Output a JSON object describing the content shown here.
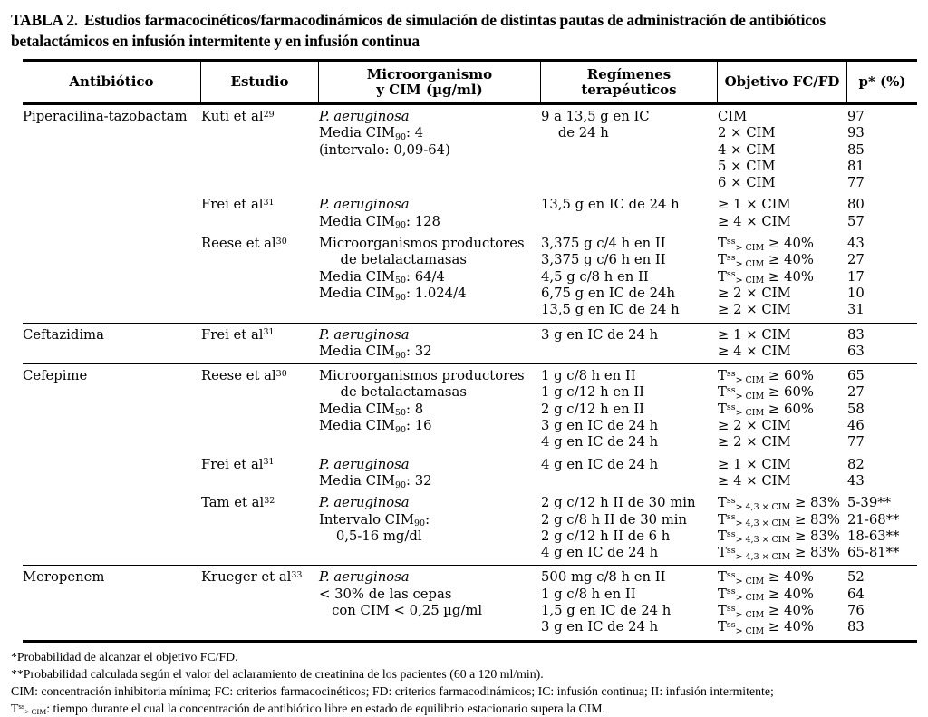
{
  "page": {
    "background": "#ffffff",
    "text_color": "#000000",
    "rule_color": "#000000"
  },
  "table": {
    "title_label": "TABLA 2.",
    "title_text": "Estudios farmacocinéticos/farmacodinámicos de simulación de distintas pautas de administración de antibióticos\nbetalactámicos en infusión intermitente y en infusión continua",
    "columns": [
      {
        "id": "antibiotico",
        "label": "Antibiótico"
      },
      {
        "id": "estudio",
        "label": "Estudio"
      },
      {
        "id": "microorganismo",
        "label": "Microorganismo\ny CIM (µg/ml)"
      },
      {
        "id": "regimenes",
        "label": "Regímenes\nterapéuticos"
      },
      {
        "id": "objetivo",
        "label": "Objetivo FC/FD"
      },
      {
        "id": "p",
        "label": "p* (%)"
      }
    ],
    "groups": [
      {
        "antibiotic": "Piperacilina-tazobactam",
        "studies": [
          {
            "study": "Kuti et al^{29}",
            "microorganism": [
              "*{P. aeruginosa}",
              "Media CIM_{90}: 4",
              "(intervalo: 0,09-64)"
            ],
            "regimens": [
              "9 a 13,5 g en IC",
              "    de 24 h"
            ],
            "objectives": [
              "CIM",
              "2 × CIM",
              "4 × CIM",
              "5 × CIM",
              "6 × CIM"
            ],
            "p_values": [
              "97",
              "93",
              "85",
              "81",
              "77"
            ]
          },
          {
            "study": "Frei et al^{31}",
            "microorganism": [
              "*{P. aeruginosa}",
              "Media CIM_{90}: 128"
            ],
            "regimens": [
              "13,5 g en IC de 24 h"
            ],
            "objectives": [
              "≥ 1 × CIM",
              "≥ 4 × CIM"
            ],
            "p_values": [
              "80",
              "57"
            ]
          },
          {
            "study": "Reese et al^{30}",
            "microorganism": [
              "Microorganismos productores",
              "     de betalactamasas",
              "Media CIM_{50}: 64/4",
              "Media CIM_{90}: 1.024/4"
            ],
            "regimens": [
              "3,375 g c/4 h en II",
              "3,375 g c/6 h en II",
              "4,5 g c/8 h en II",
              "6,75 g en IC de 24h",
              "13,5 g en IC de 24 h"
            ],
            "objectives": [
              "T^{ss}_{> CIM} ≥ 40%",
              "T^{ss}_{> CIM} ≥ 40%",
              "T^{ss}_{> CIM} ≥ 40%",
              "≥ 2 × CIM",
              "≥ 2 × CIM"
            ],
            "p_values": [
              "43",
              "27",
              "17",
              "10",
              "31"
            ]
          }
        ]
      },
      {
        "antibiotic": "Ceftazidima",
        "studies": [
          {
            "study": "Frei et al^{31}",
            "microorganism": [
              "*{P. aeruginosa}",
              "Media CIM_{90}: 32"
            ],
            "regimens": [
              "3 g en IC de 24 h"
            ],
            "objectives": [
              "≥ 1 × CIM",
              "≥ 4 × CIM"
            ],
            "p_values": [
              "83",
              "63"
            ]
          }
        ]
      },
      {
        "antibiotic": "Cefepime",
        "studies": [
          {
            "study": "Reese et al^{30}",
            "microorganism": [
              "Microorganismos productores",
              "     de betalactamasas",
              "Media CIM_{50}: 8",
              "Media CIM_{90}: 16"
            ],
            "regimens": [
              "1 g c/8 h en II",
              "1 g c/12 h en II",
              "2 g c/12 h en II",
              "3 g en IC de 24 h",
              "4 g en IC de 24 h"
            ],
            "objectives": [
              "T^{ss}_{> CIM} ≥ 60%",
              "T^{ss}_{> CIM} ≥ 60%",
              "T^{ss}_{> CIM} ≥ 60%",
              "≥ 2 × CIM",
              "≥ 2 × CIM"
            ],
            "p_values": [
              "65",
              "27",
              "58",
              "46",
              "77"
            ]
          },
          {
            "study": "Frei et al^{31}",
            "microorganism": [
              "*{P. aeruginosa}",
              "Media CIM_{90}: 32"
            ],
            "regimens": [
              "4 g en IC de 24 h"
            ],
            "objectives": [
              "≥ 1 × CIM",
              "≥ 4 × CIM"
            ],
            "p_values": [
              "82",
              "43"
            ]
          },
          {
            "study": "Tam et al^{32}",
            "microorganism": [
              "*{P. aeruginosa}",
              "Intervalo CIM_{90}:",
              "    0,5-16 mg/dl"
            ],
            "regimens": [
              "2 g c/12 h II de 30 min",
              "2 g c/8 h II de 30 min",
              "2 g c/12 h II de 6 h",
              "4 g en IC de 24 h"
            ],
            "objectives": [
              "T^{ss}_{> 4,3 × CIM} ≥ 83%",
              "T^{ss}_{> 4,3 × CIM} ≥ 83%",
              "T^{ss}_{> 4,3 × CIM} ≥ 83%",
              "T^{ss}_{> 4,3 × CIM} ≥ 83%"
            ],
            "p_values": [
              "5-39**",
              "21-68**",
              "18-63**",
              "65-81**"
            ]
          }
        ]
      },
      {
        "antibiotic": "Meropenem",
        "studies": [
          {
            "study": "Krueger et al^{33}",
            "microorganism": [
              "*{P. aeruginosa}",
              "< 30% de las cepas",
              "   con CIM < 0,25 µg/ml"
            ],
            "regimens": [
              "500 mg c/8 h en II",
              "1 g c/8 h en II",
              "1,5 g en IC de 24 h",
              "3 g en IC de 24 h"
            ],
            "objectives": [
              "T^{ss}_{> CIM} ≥ 40%",
              "T^{ss}_{> CIM} ≥ 40%",
              "T^{ss}_{> CIM} ≥ 40%",
              "T^{ss}_{> CIM} ≥ 40%"
            ],
            "p_values": [
              "52",
              "64",
              "76",
              "83"
            ]
          }
        ]
      }
    ]
  },
  "footnotes": [
    "*Probabilidad de alcanzar el objetivo FC/FD.",
    "**Probabilidad calculada según el valor del aclaramiento de creatinina de los pacientes (60 a 120 ml/min).",
    "CIM: concentración inhibitoria mínima; FC: criterios farmacocinéticos; FD: criterios farmacodinámicos; IC: infusión continua; II: infusión intermitente;",
    "T^{ss}_{> CIM}: tiempo durante el cual la concentración de antibiótico libre en estado de equilibrio estacionario supera la CIM."
  ]
}
